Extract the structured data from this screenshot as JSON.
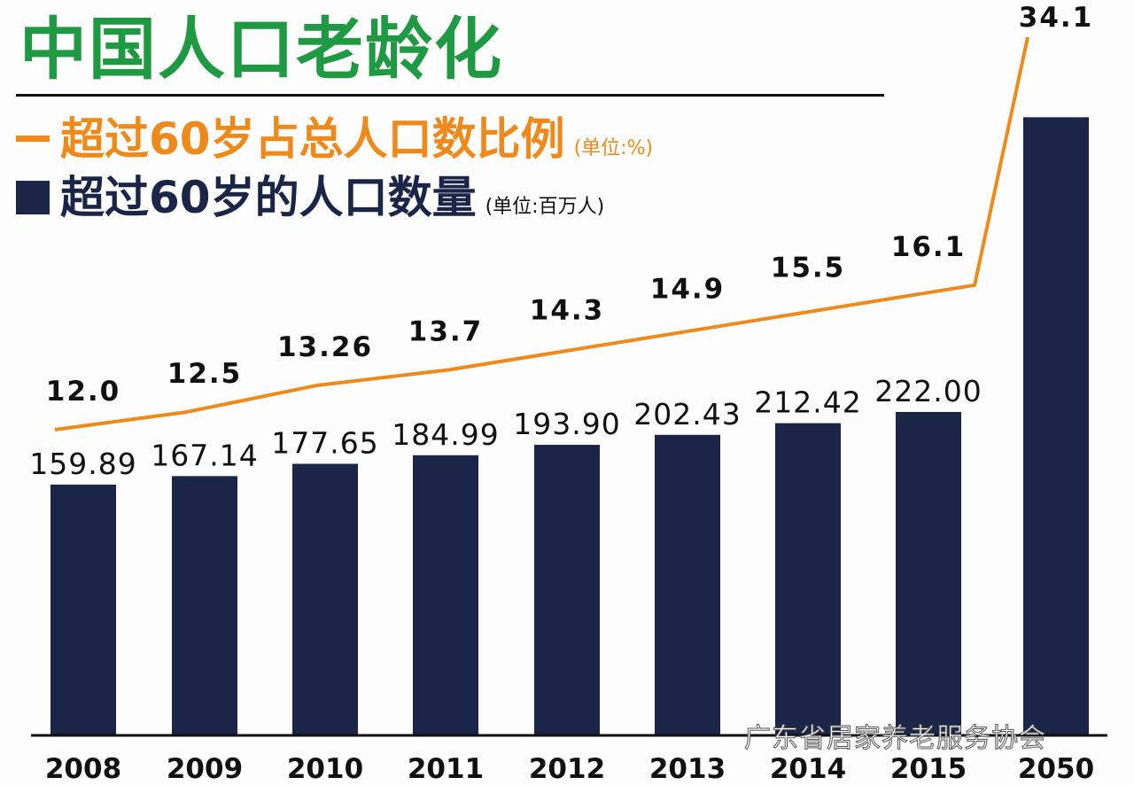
{
  "title": "中国人口老龄化",
  "legend": {
    "line_label": "超过60岁占总人口数比例",
    "line_unit": "(单位:%)",
    "bar_label": "超过60岁的人口数量",
    "bar_unit": "(单位:百万人)"
  },
  "watermark": "广东省居家养老服务协会",
  "chart_data": {
    "type": "bar+line",
    "title": "中国人口老龄化",
    "categories": [
      "2008",
      "2009",
      "2010",
      "2011",
      "2012",
      "2013",
      "2014",
      "2015",
      "2050"
    ],
    "series": [
      {
        "name": "超过60岁的人口数量 (单位:百万人)",
        "type": "bar",
        "color": "#1b2548",
        "values": [
          159.89,
          167.14,
          177.65,
          184.99,
          193.9,
          202.43,
          212.42,
          222.0,
          474
        ],
        "labels": [
          "159.89",
          "167.14",
          "177.65",
          "184.99",
          "193.90",
          "202.43",
          "212.42",
          "222.00",
          ""
        ]
      },
      {
        "name": "超过60岁占总人口数比例 (单位:%)",
        "type": "line",
        "color": "#ef8a1a",
        "values": [
          12.0,
          12.5,
          13.26,
          13.7,
          14.3,
          14.9,
          15.5,
          16.1,
          34.1
        ],
        "labels": [
          "12.0",
          "12.5",
          "13.26",
          "13.7",
          "14.3",
          "14.9",
          "15.5",
          "16.1",
          "34.1"
        ]
      }
    ],
    "grid": false,
    "legend_position": "top-left"
  }
}
